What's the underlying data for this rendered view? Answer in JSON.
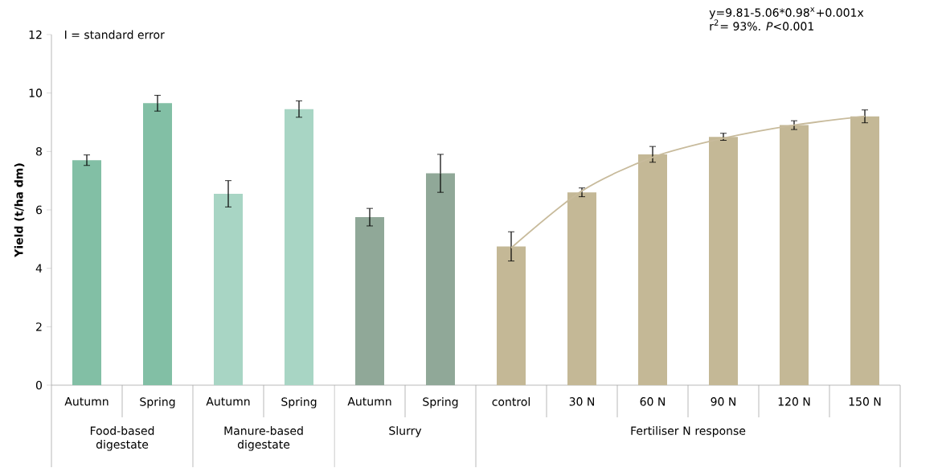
{
  "chart_data": {
    "type": "bar",
    "ylabel": "Yield (t/ha dm)",
    "categories": [
      "Autumn",
      "Spring",
      "Autumn",
      "Spring",
      "Autumn",
      "Spring",
      "control",
      "30 N",
      "60 N",
      "90 N",
      "120 N",
      "150 N"
    ],
    "series": [
      {
        "colors": [
          "#82bfa5",
          "#82bfa5",
          "#a8d5c4",
          "#a8d5c4",
          "#90a898",
          "#90a898",
          "#c4b896",
          "#c4b896",
          "#c4b896",
          "#c4b896",
          "#c4b896",
          "#c4b896"
        ],
        "values": [
          7.7,
          9.65,
          6.55,
          9.45,
          5.75,
          7.25,
          4.75,
          6.6,
          7.9,
          8.5,
          8.9,
          9.2
        ],
        "errors": [
          0.18,
          0.27,
          0.45,
          0.28,
          0.3,
          0.65,
          0.5,
          0.15,
          0.27,
          0.12,
          0.15,
          0.22
        ]
      },
      {
        "type": "line",
        "color": "#c8bb9c",
        "values": [
          null,
          null,
          null,
          null,
          null,
          null,
          4.7,
          6.65,
          7.8,
          8.45,
          8.9,
          9.2
        ]
      }
    ],
    "ylim": [
      0,
      12
    ],
    "yticks": [
      0,
      2,
      4,
      6,
      8,
      10,
      12
    ],
    "annotations": [
      "I = standard error",
      "y=9.81-5.06*0.98$^{x}$+0.001x",
      "r$^{2}$= 93%. *P*<0.001",
      "Food-based digestate",
      "Manure-based digestate",
      "Slurry",
      "Fertiliser N response"
    ]
  }
}
